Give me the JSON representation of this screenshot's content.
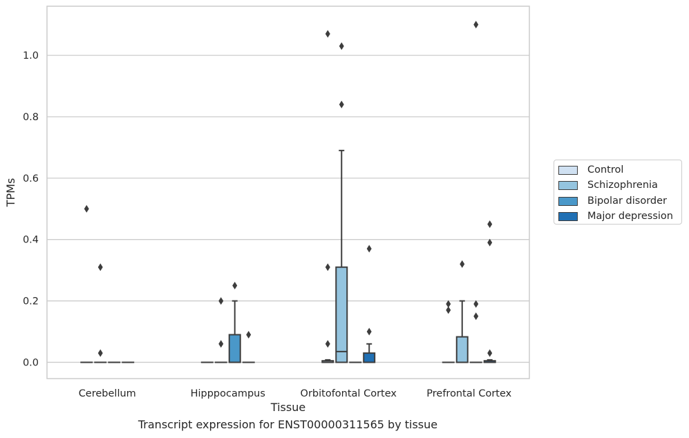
{
  "chart_data": {
    "type": "box",
    "xlabel": "Tissue",
    "ylabel": "TPMs",
    "caption": "Transcript expression for ENST00000311565 by tissue",
    "ylim": [
      -0.053,
      1.16
    ],
    "yticks": [
      "0.0",
      "0.2",
      "0.4",
      "0.6",
      "0.8",
      "1.0"
    ],
    "grid": true,
    "legend_position": "right",
    "categories": [
      "Cerebellum",
      "Hipppocampus",
      "Orbitofontal Cortex",
      "Prefrontal Cortex"
    ],
    "series": [
      {
        "name": "Control",
        "color": "#d0e1f2",
        "boxes": [
          {
            "q1": 0,
            "median": 0,
            "q3": 0,
            "whislo": 0,
            "whishi": 0,
            "fliers": [
              0.5
            ]
          },
          {
            "q1": 0,
            "median": 0,
            "q3": 0,
            "whislo": 0,
            "whishi": 0,
            "fliers": []
          },
          {
            "q1": 0,
            "median": 0,
            "q3": 0.005,
            "whislo": 0,
            "whishi": 0.008,
            "fliers": [
              0.31,
              0.06,
              1.07
            ]
          },
          {
            "q1": 0,
            "median": 0,
            "q3": 0,
            "whislo": 0,
            "whishi": 0,
            "fliers": [
              0.19,
              0.17
            ]
          }
        ]
      },
      {
        "name": "Schizophrenia",
        "color": "#94c4df",
        "boxes": [
          {
            "q1": 0,
            "median": 0,
            "q3": 0,
            "whislo": 0,
            "whishi": 0,
            "fliers": [
              0.03,
              0.31
            ]
          },
          {
            "q1": 0,
            "median": 0,
            "q3": 0,
            "whislo": 0,
            "whishi": 0,
            "fliers": [
              0.06,
              0.2
            ]
          },
          {
            "q1": 0,
            "median": 0.035,
            "q3": 0.31,
            "whislo": 0,
            "whishi": 0.69,
            "fliers": [
              1.03,
              0.84
            ]
          },
          {
            "q1": 0,
            "median": 0,
            "q3": 0.083,
            "whislo": 0,
            "whishi": 0.2,
            "fliers": [
              0.32
            ]
          }
        ]
      },
      {
        "name": "Bipolar disorder",
        "color": "#4a98c9",
        "boxes": [
          {
            "q1": 0,
            "median": 0,
            "q3": 0,
            "whislo": 0,
            "whishi": 0,
            "fliers": []
          },
          {
            "q1": 0,
            "median": 0,
            "q3": 0.09,
            "whislo": 0,
            "whishi": 0.2,
            "fliers": [
              0.25
            ]
          },
          {
            "q1": 0,
            "median": 0,
            "q3": 0,
            "whislo": 0,
            "whishi": 0,
            "fliers": []
          },
          {
            "q1": 0,
            "median": 0,
            "q3": 0,
            "whislo": 0,
            "whishi": 0,
            "fliers": [
              1.1,
              0.19,
              0.15
            ]
          }
        ]
      },
      {
        "name": "Major depression",
        "color": "#2070b4",
        "boxes": [
          {
            "q1": 0,
            "median": 0,
            "q3": 0,
            "whislo": 0,
            "whishi": 0,
            "fliers": []
          },
          {
            "q1": 0,
            "median": 0,
            "q3": 0,
            "whislo": 0,
            "whishi": 0,
            "fliers": [
              0.09
            ]
          },
          {
            "q1": 0,
            "median": 0,
            "q3": 0.03,
            "whislo": 0,
            "whishi": 0.06,
            "fliers": [
              0.37,
              0.1
            ]
          },
          {
            "q1": 0,
            "median": 0,
            "q3": 0.005,
            "whislo": 0,
            "whishi": 0.008,
            "fliers": [
              0.45,
              0.39,
              0.03
            ]
          }
        ]
      }
    ]
  }
}
